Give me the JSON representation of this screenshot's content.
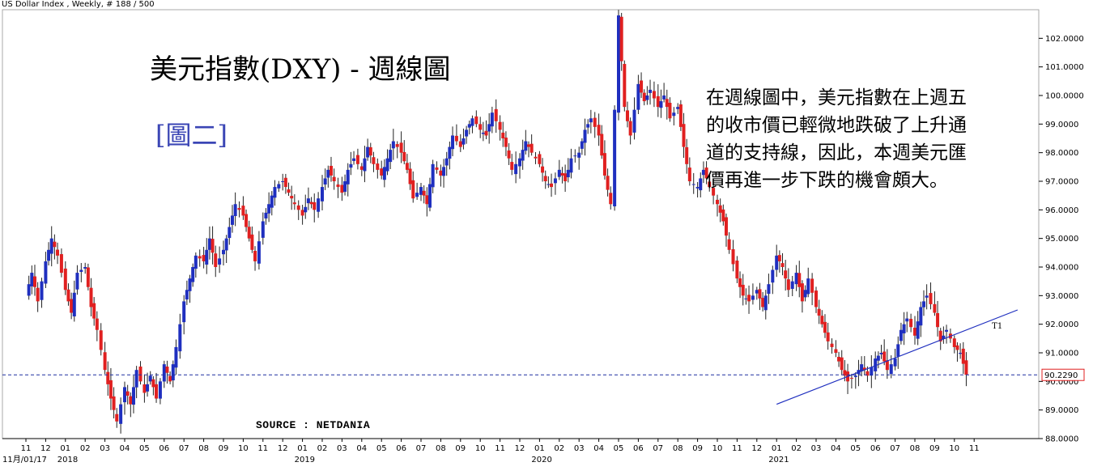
{
  "header": {
    "text": "US Dollar Index , Weekly, # 188 / 500"
  },
  "annotations": {
    "title": "美元指數(DXY) - 週線圖",
    "subtitle": "[圖二]",
    "note_lines": [
      "在週線圖中，美元指數在上週五",
      "的收市價已輕微地跌破了上升通",
      "道的支持線，因此，本週美元匯",
      "價再進一步下跌的機會頗大。"
    ],
    "source": "SOURCE : NETDANIA",
    "trendline_label": "T1",
    "current_price": "90.2290"
  },
  "colors": {
    "up": "#1f2fbf",
    "down": "#e02020",
    "trendline": "#1f2fbf",
    "price_box": "#e02020"
  },
  "chart_data": {
    "type": "candlestick",
    "ylim": [
      88.0,
      103.0
    ],
    "y_ticks": [
      "88.0000",
      "89.0000",
      "90.0000",
      "91.0000",
      "92.0000",
      "93.0000",
      "94.0000",
      "95.0000",
      "96.0000",
      "97.0000",
      "98.0000",
      "99.0000",
      "100.0000",
      "101.0000",
      "102.0000"
    ],
    "x_month_labels": [
      "11",
      "12",
      "01",
      "02",
      "03",
      "04",
      "05",
      "06",
      "07",
      "08",
      "09",
      "10",
      "11",
      "12",
      "01",
      "02",
      "03",
      "04",
      "05",
      "06",
      "07",
      "08",
      "09",
      "10",
      "11",
      "12",
      "01",
      "02",
      "03",
      "04",
      "05",
      "06",
      "07",
      "08",
      "09",
      "10",
      "11",
      "12",
      "01",
      "02",
      "03",
      "04",
      "05",
      "06",
      "07",
      "08",
      "09",
      "10",
      "11"
    ],
    "x_year_labels": [
      {
        "text": "11月/01/17",
        "month_index": 0
      },
      {
        "text": "2018",
        "month_index": 2
      },
      {
        "text": "2019",
        "month_index": 14
      },
      {
        "text": "2020",
        "month_index": 26
      },
      {
        "text": "2021",
        "month_index": 38
      }
    ],
    "trendline": {
      "start": {
        "month": 38.0,
        "value": 89.2
      },
      "end": {
        "month": 50.2,
        "value": 92.5
      }
    },
    "current_price_line": 90.229,
    "close_path": [
      [
        0,
        93.0
      ],
      [
        0.3,
        93.8
      ],
      [
        0.6,
        92.8
      ],
      [
        1.0,
        94.2
      ],
      [
        1.3,
        95.0
      ],
      [
        1.6,
        94.4
      ],
      [
        2.0,
        93.2
      ],
      [
        2.3,
        92.4
      ],
      [
        2.6,
        93.8
      ],
      [
        3.0,
        94.0
      ],
      [
        3.3,
        92.6
      ],
      [
        3.6,
        91.8
      ],
      [
        4.0,
        90.4
      ],
      [
        4.3,
        89.4
      ],
      [
        4.6,
        88.6
      ],
      [
        5.0,
        89.8
      ],
      [
        5.3,
        89.2
      ],
      [
        5.6,
        90.4
      ],
      [
        6.0,
        89.6
      ],
      [
        6.3,
        90.2
      ],
      [
        6.6,
        89.4
      ],
      [
        7.0,
        90.6
      ],
      [
        7.3,
        90.0
      ],
      [
        7.6,
        91.2
      ],
      [
        8.0,
        92.8
      ],
      [
        8.3,
        93.6
      ],
      [
        8.6,
        94.4
      ],
      [
        9.0,
        94.2
      ],
      [
        9.3,
        95.0
      ],
      [
        9.6,
        94.0
      ],
      [
        10.0,
        94.6
      ],
      [
        10.3,
        95.4
      ],
      [
        10.6,
        96.2
      ],
      [
        11.0,
        95.8
      ],
      [
        11.3,
        95.0
      ],
      [
        11.6,
        94.2
      ],
      [
        12.0,
        95.6
      ],
      [
        12.3,
        96.2
      ],
      [
        12.6,
        96.8
      ],
      [
        13.0,
        97.0
      ],
      [
        13.3,
        96.6
      ],
      [
        13.6,
        96.2
      ],
      [
        14.0,
        95.8
      ],
      [
        14.3,
        96.4
      ],
      [
        14.6,
        96.0
      ],
      [
        15.0,
        96.8
      ],
      [
        15.3,
        97.4
      ],
      [
        15.6,
        97.0
      ],
      [
        16.0,
        96.6
      ],
      [
        16.3,
        97.4
      ],
      [
        16.6,
        97.8
      ],
      [
        17.0,
        97.4
      ],
      [
        17.3,
        98.2
      ],
      [
        17.6,
        97.6
      ],
      [
        18.0,
        97.2
      ],
      [
        18.3,
        97.8
      ],
      [
        18.6,
        98.4
      ],
      [
        19.0,
        98.0
      ],
      [
        19.3,
        97.4
      ],
      [
        19.6,
        96.4
      ],
      [
        20.0,
        96.8
      ],
      [
        20.3,
        96.2
      ],
      [
        20.6,
        97.6
      ],
      [
        21.0,
        97.2
      ],
      [
        21.3,
        97.8
      ],
      [
        21.6,
        98.6
      ],
      [
        22.0,
        98.2
      ],
      [
        22.3,
        98.8
      ],
      [
        22.6,
        99.2
      ],
      [
        23.0,
        98.8
      ],
      [
        23.3,
        98.6
      ],
      [
        23.6,
        99.4
      ],
      [
        24.0,
        98.8
      ],
      [
        24.3,
        98.2
      ],
      [
        24.6,
        97.4
      ],
      [
        25.0,
        97.8
      ],
      [
        25.3,
        98.4
      ],
      [
        25.6,
        98.0
      ],
      [
        26.0,
        97.6
      ],
      [
        26.3,
        97.0
      ],
      [
        26.6,
        96.8
      ],
      [
        27.0,
        97.4
      ],
      [
        27.3,
        97.0
      ],
      [
        27.6,
        97.8
      ],
      [
        28.0,
        98.0
      ],
      [
        28.3,
        98.8
      ],
      [
        28.6,
        99.2
      ],
      [
        29.0,
        98.6
      ],
      [
        29.3,
        97.2
      ],
      [
        29.6,
        96.2
      ],
      [
        30.0,
        102.8
      ],
      [
        30.3,
        99.6
      ],
      [
        30.6,
        98.6
      ],
      [
        31.0,
        100.4
      ],
      [
        31.3,
        99.8
      ],
      [
        31.6,
        100.2
      ],
      [
        32.0,
        99.6
      ],
      [
        32.3,
        100.0
      ],
      [
        32.6,
        99.2
      ],
      [
        33.0,
        99.6
      ],
      [
        33.3,
        98.2
      ],
      [
        33.6,
        97.0
      ],
      [
        34.0,
        96.8
      ],
      [
        34.3,
        97.4
      ],
      [
        34.6,
        96.8
      ],
      [
        35.0,
        96.2
      ],
      [
        35.3,
        95.6
      ],
      [
        35.6,
        94.6
      ],
      [
        36.0,
        93.6
      ],
      [
        36.3,
        93.0
      ],
      [
        36.6,
        92.8
      ],
      [
        37.0,
        93.2
      ],
      [
        37.3,
        92.6
      ],
      [
        37.6,
        93.4
      ],
      [
        38.0,
        94.4
      ],
      [
        38.3,
        94.0
      ],
      [
        38.6,
        93.2
      ],
      [
        39.0,
        93.8
      ],
      [
        39.3,
        92.8
      ],
      [
        39.6,
        93.6
      ],
      [
        40.0,
        92.6
      ],
      [
        40.3,
        92.0
      ],
      [
        40.6,
        91.4
      ],
      [
        41.0,
        91.0
      ],
      [
        41.3,
        90.4
      ],
      [
        41.6,
        90.0
      ],
      [
        42.0,
        90.2
      ],
      [
        42.3,
        90.6
      ],
      [
        42.6,
        90.2
      ],
      [
        43.0,
        90.8
      ],
      [
        43.3,
        91.0
      ],
      [
        43.6,
        90.4
      ],
      [
        44.0,
        90.8
      ],
      [
        44.3,
        91.8
      ],
      [
        44.6,
        92.2
      ],
      [
        45.0,
        91.6
      ],
      [
        45.3,
        92.6
      ],
      [
        45.6,
        93.0
      ],
      [
        46.0,
        92.4
      ],
      [
        46.3,
        91.4
      ],
      [
        46.6,
        91.8
      ],
      [
        47.0,
        91.2
      ],
      [
        47.3,
        91.0
      ],
      [
        47.6,
        90.23
      ]
    ]
  }
}
